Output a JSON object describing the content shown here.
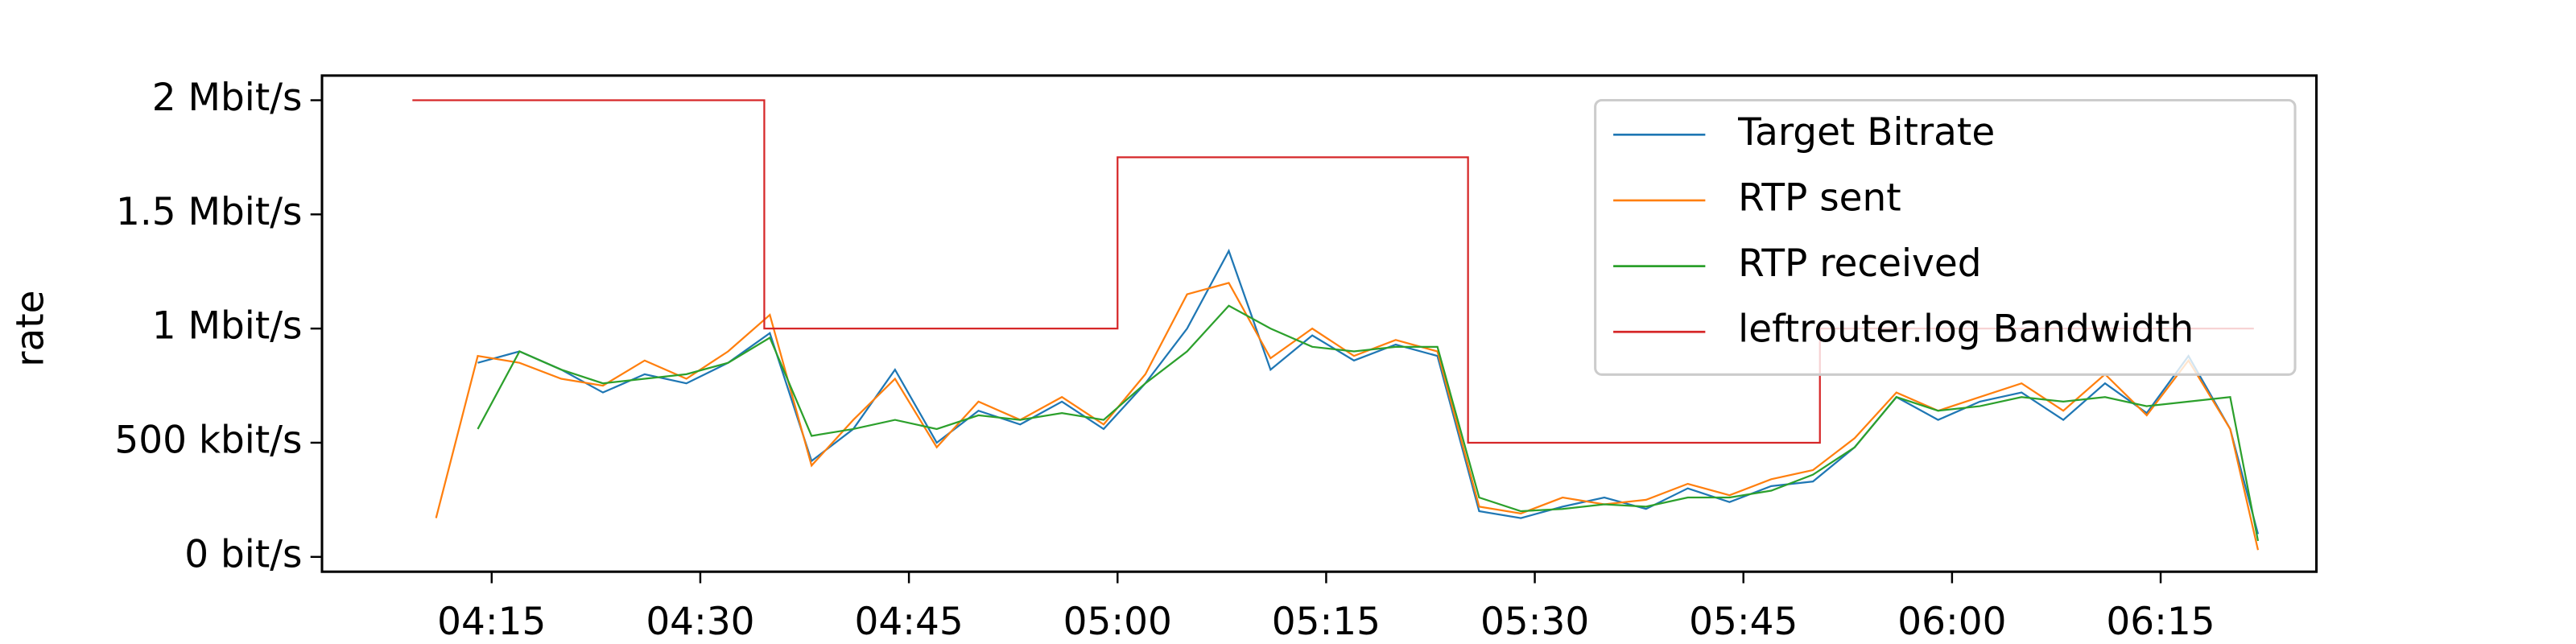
{
  "chart_data": {
    "type": "line",
    "ylabel": "rate",
    "xlim": [
      242.8,
      386.2
    ],
    "ylim": [
      -65000,
      2108000
    ],
    "xticks": [
      {
        "value": 255,
        "label": "04:15"
      },
      {
        "value": 270,
        "label": "04:30"
      },
      {
        "value": 285,
        "label": "04:45"
      },
      {
        "value": 300,
        "label": "05:00"
      },
      {
        "value": 315,
        "label": "05:15"
      },
      {
        "value": 330,
        "label": "05:30"
      },
      {
        "value": 345,
        "label": "05:45"
      },
      {
        "value": 360,
        "label": "06:00"
      },
      {
        "value": 375,
        "label": "06:15"
      }
    ],
    "yticks": [
      {
        "value": 0,
        "label": "0 bit/s"
      },
      {
        "value": 500000,
        "label": "500 kbit/s"
      },
      {
        "value": 1000000,
        "label": "1 Mbit/s"
      },
      {
        "value": 1500000,
        "label": "1.5 Mbit/s"
      },
      {
        "value": 2000000,
        "label": "2 Mbit/s"
      }
    ],
    "grid": false,
    "legend": "upper right",
    "series": [
      {
        "name": "Target Bitrate",
        "color": "#1f77b4",
        "x": [
          251,
          254,
          257,
          260,
          263,
          266,
          269,
          272,
          275,
          278,
          281,
          284,
          287,
          290,
          293,
          296,
          299,
          302,
          305,
          308,
          311,
          314,
          317,
          320,
          323,
          326,
          329,
          332,
          335,
          338,
          341,
          344,
          347,
          350,
          353,
          356,
          359,
          362,
          365,
          368,
          371,
          374,
          377,
          380,
          382
        ],
        "values": [
          null,
          850000,
          900000,
          820000,
          720000,
          800000,
          760000,
          850000,
          980000,
          420000,
          560000,
          820000,
          500000,
          640000,
          580000,
          680000,
          560000,
          760000,
          1000000,
          1340000,
          820000,
          970000,
          860000,
          930000,
          880000,
          200000,
          170000,
          220000,
          260000,
          210000,
          300000,
          240000,
          310000,
          330000,
          480000,
          700000,
          600000,
          680000,
          720000,
          600000,
          760000,
          630000,
          880000,
          560000,
          100000
        ]
      },
      {
        "name": "RTP sent",
        "color": "#ff7f0e",
        "x": [
          251,
          254,
          257,
          260,
          263,
          266,
          269,
          272,
          275,
          278,
          281,
          284,
          287,
          290,
          293,
          296,
          299,
          302,
          305,
          308,
          311,
          314,
          317,
          320,
          323,
          326,
          329,
          332,
          335,
          338,
          341,
          344,
          347,
          350,
          353,
          356,
          359,
          362,
          365,
          368,
          371,
          374,
          377,
          380,
          382
        ],
        "values": [
          170000,
          880000,
          850000,
          780000,
          750000,
          860000,
          780000,
          900000,
          1060000,
          400000,
          600000,
          780000,
          480000,
          680000,
          600000,
          700000,
          580000,
          800000,
          1150000,
          1200000,
          870000,
          1000000,
          880000,
          950000,
          900000,
          220000,
          190000,
          260000,
          230000,
          250000,
          320000,
          270000,
          340000,
          380000,
          520000,
          720000,
          640000,
          700000,
          760000,
          640000,
          800000,
          620000,
          860000,
          560000,
          30000
        ]
      },
      {
        "name": "RTP received",
        "color": "#2ca02c",
        "x": [
          251,
          254,
          257,
          260,
          263,
          266,
          269,
          272,
          275,
          278,
          281,
          284,
          287,
          290,
          293,
          296,
          299,
          302,
          305,
          308,
          311,
          314,
          317,
          320,
          323,
          326,
          329,
          332,
          335,
          338,
          341,
          344,
          347,
          350,
          353,
          356,
          359,
          362,
          365,
          368,
          371,
          374,
          377,
          380,
          382
        ],
        "values": [
          null,
          560000,
          900000,
          820000,
          760000,
          780000,
          800000,
          850000,
          960000,
          530000,
          560000,
          600000,
          560000,
          620000,
          600000,
          630000,
          600000,
          760000,
          900000,
          1100000,
          1000000,
          920000,
          900000,
          920000,
          920000,
          260000,
          200000,
          210000,
          230000,
          220000,
          260000,
          260000,
          290000,
          360000,
          480000,
          700000,
          640000,
          660000,
          700000,
          680000,
          700000,
          660000,
          680000,
          700000,
          70000
        ]
      },
      {
        "name": "leftrouter.log Bandwidth",
        "color": "#d62728",
        "drawstyle": "steps-post",
        "x": [
          249.3,
          274.6,
          300,
          325.2,
          350.5,
          381.7
        ],
        "values": [
          2000000,
          1000000,
          1750000,
          500000,
          1000000,
          1000000
        ]
      }
    ]
  }
}
